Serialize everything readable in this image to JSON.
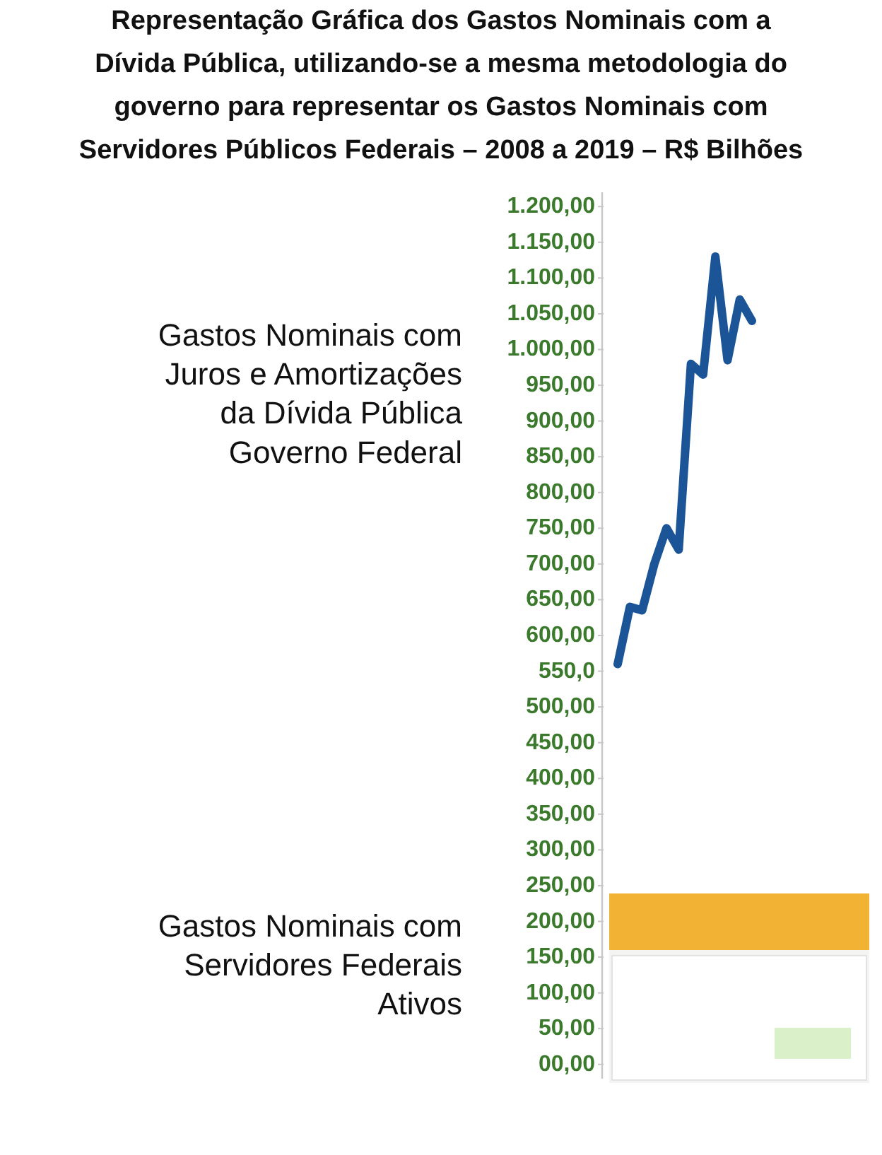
{
  "chart_data": {
    "type": "line",
    "title": "Representação Gráfica dos Gastos Nominais com a Dívida Pública, utilizando-se a mesma metodologia do governo para representar os Gastos Nominais com Servidores Públicos Federais – 2008 a 2019 – R$ Bilhões",
    "annotations": [
      "Gastos Nominais com Juros e Amortizações da Dívida Pública Governo Federal",
      "Gastos Nominais com Servidores Federais Ativos"
    ],
    "categories": [
      null,
      null,
      null,
      null,
      null,
      null,
      null,
      null,
      null,
      null,
      null,
      null
    ],
    "series": [
      {
        "color": "#1b5597",
        "values": [
          560,
          640,
          635,
          700,
          750,
          720,
          980,
          965,
          1130,
          985,
          1070,
          1040
        ]
      }
    ],
    "ylim": [
      -20,
      1220
    ],
    "yticks": [
      {
        "value": 0,
        "label": "00,00"
      },
      {
        "value": 50,
        "label": "50,00"
      },
      {
        "value": 100,
        "label": "100,00"
      },
      {
        "value": 150,
        "label": "150,00"
      },
      {
        "value": 200,
        "label": "200,00"
      },
      {
        "value": 250,
        "label": "250,00"
      },
      {
        "value": 300,
        "label": "300,00"
      },
      {
        "value": 350,
        "label": "350,00"
      },
      {
        "value": 400,
        "label": "400,00"
      },
      {
        "value": 450,
        "label": "450,00"
      },
      {
        "value": 500,
        "label": "500,00"
      },
      {
        "value": 550,
        "label": "550,0"
      },
      {
        "value": 600,
        "label": "600,00"
      },
      {
        "value": 650,
        "label": "650,00"
      },
      {
        "value": 700,
        "label": "700,00"
      },
      {
        "value": 750,
        "label": "750,00"
      },
      {
        "value": 800,
        "label": "800,00"
      },
      {
        "value": 850,
        "label": "850,00"
      },
      {
        "value": 900,
        "label": "900,00"
      },
      {
        "value": 950,
        "label": "950,00"
      },
      {
        "value": 1000,
        "label": "1.000,00"
      },
      {
        "value": 1050,
        "label": "1.050,00"
      },
      {
        "value": 1100,
        "label": "1.100,00"
      },
      {
        "value": 1150,
        "label": "1.150,00"
      },
      {
        "value": 1200,
        "label": "1.200,00"
      }
    ],
    "tick_labels": "y",
    "line_style": "solid"
  }
}
